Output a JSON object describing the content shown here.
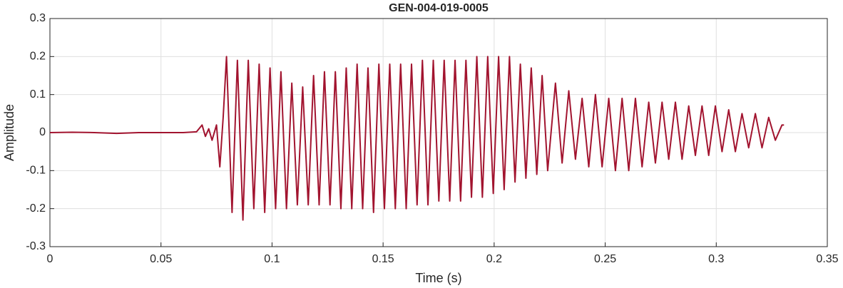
{
  "chart_data": {
    "type": "line",
    "title": "GEN-004-019-0005",
    "xlabel": "Time (s)",
    "ylabel": "Amplitude",
    "xlim": [
      0,
      0.35
    ],
    "ylim": [
      -0.3,
      0.3
    ],
    "xticks": [
      0,
      0.05,
      0.1,
      0.15,
      0.2,
      0.25,
      0.3,
      0.35
    ],
    "yticks": [
      -0.3,
      -0.2,
      -0.1,
      0,
      0.1,
      0.2,
      0.3
    ],
    "grid": true,
    "x": [
      0,
      0.01,
      0.02,
      0.03,
      0.04,
      0.05,
      0.06,
      0.066,
      0.0685,
      0.07,
      0.0715,
      0.073,
      0.075,
      0.0765,
      0.078,
      0.0795,
      0.082,
      0.0844,
      0.0869,
      0.0893,
      0.0918,
      0.0942,
      0.0967,
      0.0991,
      0.1016,
      0.104,
      0.1065,
      0.1089,
      0.1114,
      0.1138,
      0.1163,
      0.1187,
      0.1212,
      0.1236,
      0.1261,
      0.1285,
      0.131,
      0.1334,
      0.1359,
      0.1383,
      0.1408,
      0.1432,
      0.1457,
      0.1481,
      0.1506,
      0.153,
      0.1555,
      0.1579,
      0.1604,
      0.1628,
      0.1653,
      0.1677,
      0.1702,
      0.1726,
      0.1751,
      0.1775,
      0.18,
      0.1824,
      0.1849,
      0.1873,
      0.1898,
      0.1922,
      0.1947,
      0.1971,
      0.1996,
      0.202,
      0.2045,
      0.2069,
      0.2094,
      0.2118,
      0.2143,
      0.2167,
      0.2192,
      0.2216,
      0.2241,
      0.2276,
      0.2306,
      0.2336,
      0.2366,
      0.2396,
      0.2426,
      0.2456,
      0.2486,
      0.2516,
      0.2546,
      0.2576,
      0.2606,
      0.2636,
      0.2666,
      0.2696,
      0.2726,
      0.2756,
      0.2786,
      0.2816,
      0.2846,
      0.2876,
      0.2906,
      0.2936,
      0.2966,
      0.2996,
      0.3026,
      0.3056,
      0.3086,
      0.3116,
      0.3146,
      0.3176,
      0.3206,
      0.3236,
      0.3266,
      0.3296,
      0.3305
    ],
    "series": [
      {
        "name": "Amplitude",
        "color": "#a2142f",
        "values": [
          0,
          0.001,
          0,
          -0.002,
          0,
          0,
          0,
          0.002,
          0.02,
          -0.01,
          0.01,
          -0.02,
          0.02,
          -0.09,
          0.04,
          0.2,
          -0.21,
          0.19,
          -0.23,
          0.19,
          -0.2,
          0.18,
          -0.21,
          0.17,
          -0.2,
          0.16,
          -0.2,
          0.13,
          -0.19,
          0.12,
          -0.19,
          0.15,
          -0.19,
          0.16,
          -0.19,
          0.16,
          -0.2,
          0.17,
          -0.2,
          0.18,
          -0.2,
          0.17,
          -0.21,
          0.18,
          -0.2,
          0.18,
          -0.2,
          0.18,
          -0.2,
          0.18,
          -0.19,
          0.19,
          -0.19,
          0.19,
          -0.18,
          0.19,
          -0.18,
          0.19,
          -0.18,
          0.19,
          -0.17,
          0.2,
          -0.17,
          0.2,
          -0.16,
          0.2,
          -0.15,
          0.2,
          -0.13,
          0.18,
          -0.12,
          0.17,
          -0.11,
          0.15,
          -0.1,
          0.13,
          -0.08,
          0.11,
          -0.07,
          0.09,
          -0.09,
          0.1,
          -0.09,
          0.09,
          -0.1,
          0.09,
          -0.1,
          0.09,
          -0.09,
          0.08,
          -0.08,
          0.08,
          -0.07,
          0.08,
          -0.07,
          0.07,
          -0.06,
          0.07,
          -0.06,
          0.07,
          -0.05,
          0.06,
          -0.05,
          0.05,
          -0.04,
          0.05,
          -0.04,
          0.04,
          -0.02,
          0.02,
          0.02
        ]
      }
    ]
  }
}
